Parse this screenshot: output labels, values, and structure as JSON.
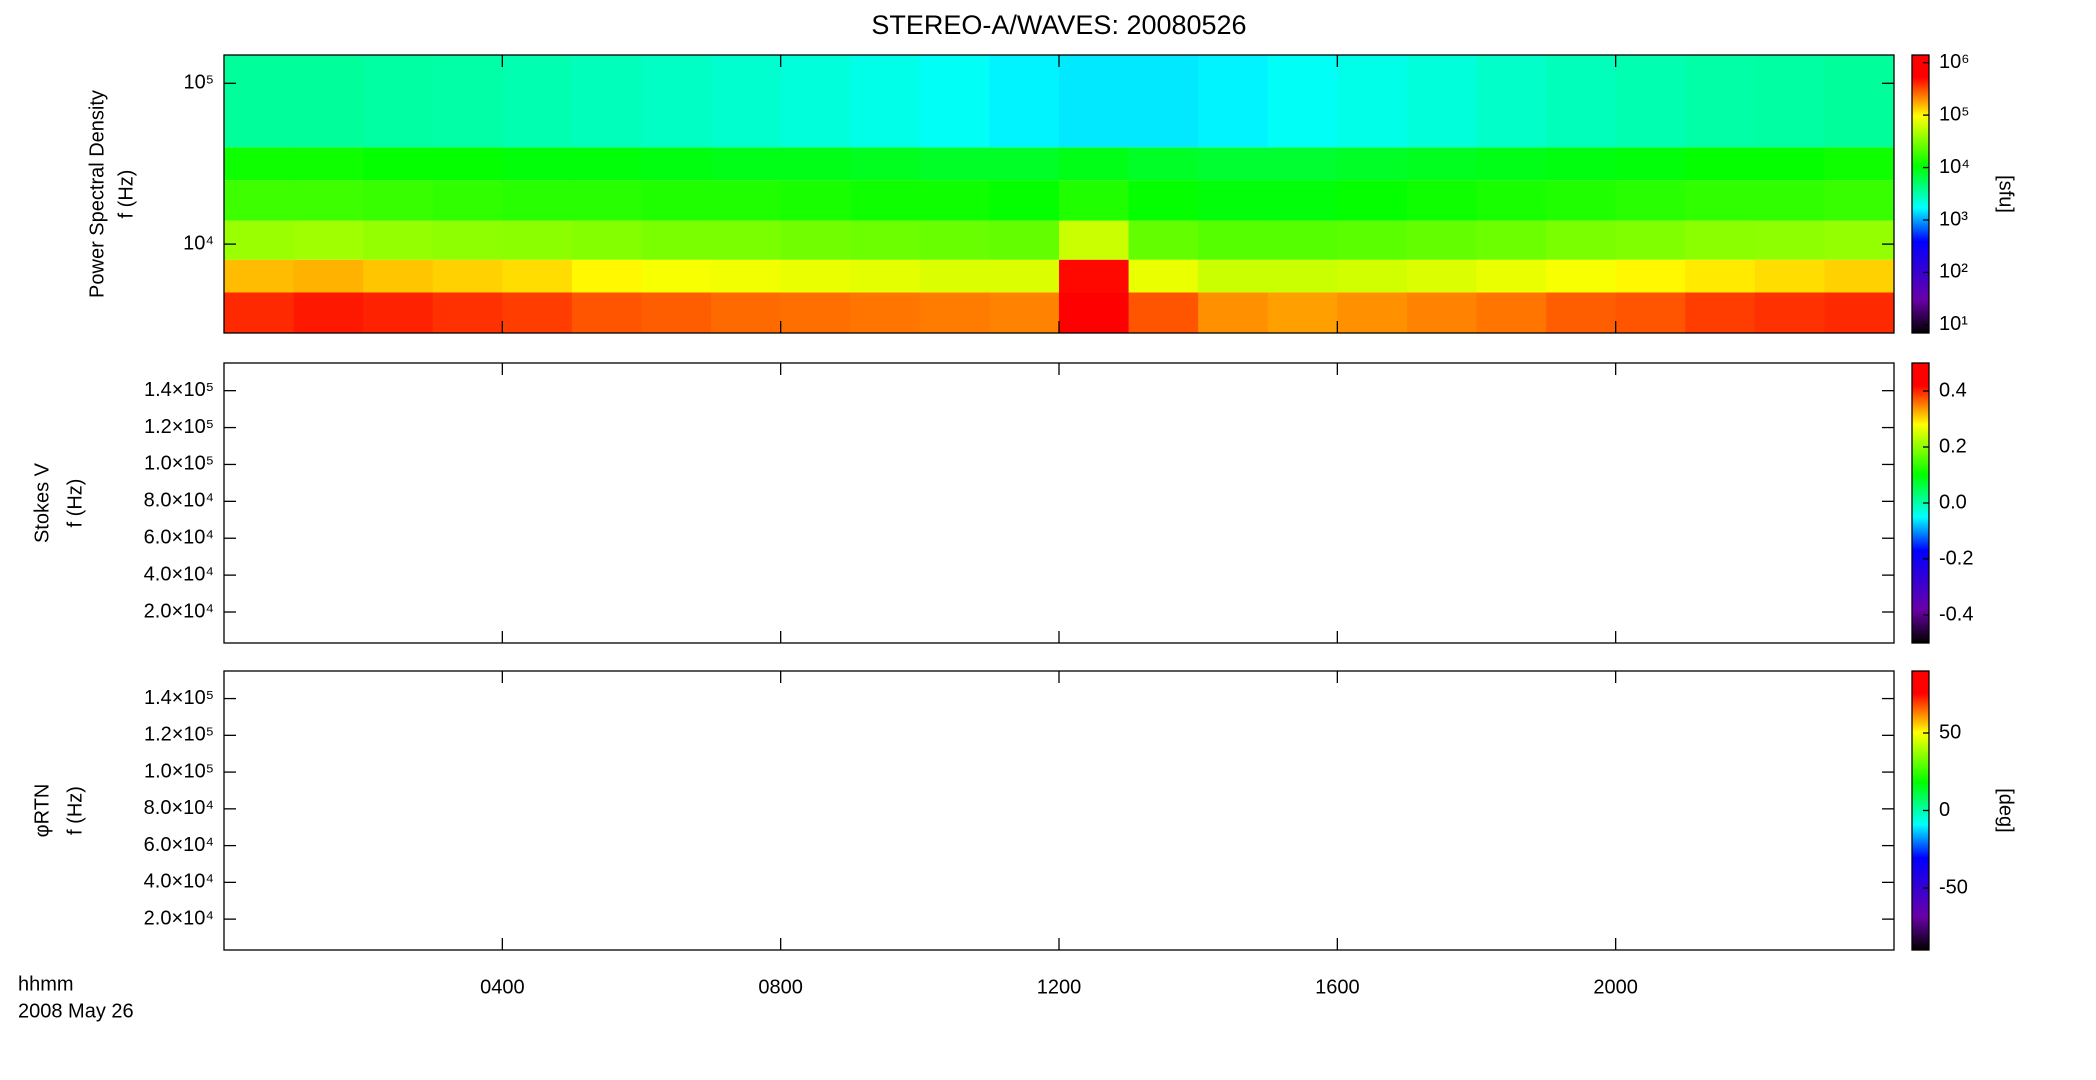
{
  "title": "STEREO-A/WAVES: 20080526",
  "x_axis": {
    "xlim": [
      0,
      24
    ],
    "xticks": [
      {
        "value": 4,
        "label": "0400"
      },
      {
        "value": 8,
        "label": "0800"
      },
      {
        "value": 12,
        "label": "1200"
      },
      {
        "value": 16,
        "label": "1600"
      },
      {
        "value": 20,
        "label": "2000"
      }
    ],
    "label": "hhmm",
    "date": "2008 May 26"
  },
  "colormap": [
    [
      0,
      "#000000"
    ],
    [
      0.12,
      "#6a00a8"
    ],
    [
      0.33,
      "#0000ff"
    ],
    [
      0.45,
      "#00ffff"
    ],
    [
      0.6,
      "#00ff00"
    ],
    [
      0.78,
      "#ffff00"
    ],
    [
      0.92,
      "#ff0000"
    ],
    [
      1,
      "#ff0000"
    ]
  ],
  "chart_data": [
    {
      "type": "heatmap",
      "ylabel": [
        "Power Spectral Density",
        "f (Hz)"
      ],
      "ylog": true,
      "ylim": [
        2800,
        150000
      ],
      "yticks": [
        {
          "value": 10000,
          "label": "10⁴"
        },
        {
          "value": 100000,
          "label": "10⁵"
        }
      ],
      "clabel": "[sfu]",
      "clog": true,
      "clim": [
        7,
        1400000
      ],
      "cticks": [
        {
          "value": 10,
          "label": "10¹"
        },
        {
          "value": 100,
          "label": "10²"
        },
        {
          "value": 1000,
          "label": "10³"
        },
        {
          "value": 10000,
          "label": "10⁴"
        },
        {
          "value": 100000,
          "label": "10⁵"
        },
        {
          "value": 1000000,
          "label": "10⁶"
        }
      ],
      "x_edges": [
        0,
        1,
        2,
        3,
        4,
        5,
        6,
        7,
        8,
        9,
        10,
        11,
        12,
        13,
        14,
        15,
        16,
        17,
        18,
        19,
        20,
        21,
        22,
        23,
        24
      ],
      "y_edges": [
        2800,
        5000,
        8000,
        14000,
        25000,
        40000,
        150000
      ],
      "values": [
        [
          400000,
          450000,
          420000,
          380000,
          350000,
          300000,
          280000,
          260000,
          250000,
          240000,
          230000,
          220000,
          900000,
          300000,
          200000,
          180000,
          200000,
          220000,
          240000,
          280000,
          300000,
          350000,
          380000,
          400000
        ],
        [
          150000,
          160000,
          140000,
          130000,
          120000,
          100000,
          90000,
          85000,
          80000,
          75000,
          70000,
          70000,
          500000,
          80000,
          60000,
          60000,
          65000,
          70000,
          80000,
          90000,
          100000,
          110000,
          120000,
          130000
        ],
        [
          40000,
          42000,
          38000,
          36000,
          35000,
          33000,
          30000,
          30000,
          28000,
          27000,
          26000,
          25000,
          60000,
          25000,
          22000,
          22000,
          23000,
          25000,
          27000,
          30000,
          32000,
          35000,
          36000,
          38000
        ],
        [
          18000,
          18000,
          17000,
          16000,
          15000,
          15000,
          14000,
          14000,
          13000,
          12000,
          12000,
          11000,
          14000,
          11000,
          10000,
          10000,
          11000,
          12000,
          13000,
          14000,
          15000,
          16000,
          16000,
          17000
        ],
        [
          12000,
          12000,
          11000,
          11000,
          10000,
          10000,
          9500,
          9000,
          9000,
          8500,
          8000,
          8000,
          9000,
          8000,
          7500,
          7500,
          8000,
          8500,
          9000,
          9500,
          10000,
          11000,
          11000,
          12000
        ],
        [
          3500,
          3500,
          3300,
          3200,
          3000,
          2800,
          2600,
          2400,
          2200,
          2000,
          1800,
          1600,
          1500,
          1500,
          1600,
          1800,
          2000,
          2200,
          2500,
          2800,
          3000,
          3200,
          3300,
          3500
        ]
      ]
    },
    {
      "type": "heatmap",
      "ylabel": [
        "Stokes V",
        "f (Hz)"
      ],
      "ylim": [
        3200,
        155000
      ],
      "yticks": [
        {
          "value": 20000,
          "label": "2.0×10⁴"
        },
        {
          "value": 40000,
          "label": "4.0×10⁴"
        },
        {
          "value": 60000,
          "label": "6.0×10⁴"
        },
        {
          "value": 80000,
          "label": "8.0×10⁴"
        },
        {
          "value": 100000,
          "label": "1.0×10⁵"
        },
        {
          "value": 120000,
          "label": "1.2×10⁵"
        },
        {
          "value": 140000,
          "label": "1.4×10⁵"
        }
      ],
      "clim": [
        -0.5,
        0.5
      ],
      "cticks": [
        {
          "value": -0.4,
          "label": "-0.4"
        },
        {
          "value": -0.2,
          "label": "-0.2"
        },
        {
          "value": 0,
          "label": "0.0"
        },
        {
          "value": 0.2,
          "label": "0.2"
        },
        {
          "value": 0.4,
          "label": "0.4"
        }
      ]
    },
    {
      "type": "heatmap",
      "ylabel": [
        "φRTN",
        "f (Hz)"
      ],
      "ylim": [
        3200,
        155000
      ],
      "yticks": [
        {
          "value": 20000,
          "label": "2.0×10⁴"
        },
        {
          "value": 40000,
          "label": "4.0×10⁴"
        },
        {
          "value": 60000,
          "label": "6.0×10⁴"
        },
        {
          "value": 80000,
          "label": "8.0×10⁴"
        },
        {
          "value": 100000,
          "label": "1.0×10⁵"
        },
        {
          "value": 120000,
          "label": "1.2×10⁵"
        },
        {
          "value": 140000,
          "label": "1.4×10⁵"
        }
      ],
      "clabel": "[deg]",
      "clim": [
        -90,
        90
      ],
      "cticks": [
        -50,
        0,
        50
      ]
    }
  ]
}
